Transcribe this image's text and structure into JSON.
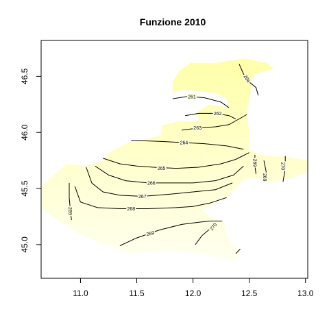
{
  "chart_data": {
    "type": "contour",
    "title": "Funzione 2010",
    "xlabel": "",
    "ylabel": "",
    "xlim": [
      10.65,
      13.02
    ],
    "ylim": [
      44.7,
      46.82
    ],
    "x_ticks": [
      "11.0",
      "11.5",
      "12.0",
      "12.5",
      "13.0"
    ],
    "y_ticks": [
      "45.0",
      "45.5",
      "46.0",
      "46.5"
    ],
    "fill_color": "#FFFFCC",
    "fill_color_dark": "#FFFFAA",
    "line_color": "#000000",
    "grid": false,
    "region_outline": [
      [
        10.65,
        45.52
      ],
      [
        10.88,
        45.72
      ],
      [
        11.05,
        45.7
      ],
      [
        11.2,
        45.75
      ],
      [
        11.25,
        45.82
      ],
      [
        11.4,
        45.9
      ],
      [
        11.55,
        45.93
      ],
      [
        11.72,
        45.98
      ],
      [
        11.72,
        46.06
      ],
      [
        11.88,
        46.1
      ],
      [
        12.05,
        46.1
      ],
      [
        12.03,
        46.18
      ],
      [
        12.15,
        46.25
      ],
      [
        12.32,
        46.22
      ],
      [
        12.3,
        46.3
      ],
      [
        12.2,
        46.35
      ],
      [
        11.9,
        46.38
      ],
      [
        11.82,
        46.35
      ],
      [
        11.82,
        46.45
      ],
      [
        11.88,
        46.55
      ],
      [
        11.98,
        46.62
      ],
      [
        12.2,
        46.62
      ],
      [
        12.45,
        46.66
      ],
      [
        12.65,
        46.62
      ],
      [
        12.72,
        46.57
      ],
      [
        12.55,
        46.52
      ],
      [
        12.52,
        46.46
      ],
      [
        12.52,
        46.4
      ],
      [
        12.5,
        46.3
      ],
      [
        12.48,
        46.16
      ],
      [
        12.5,
        46.0
      ],
      [
        12.5,
        45.85
      ],
      [
        12.6,
        45.8
      ],
      [
        12.85,
        45.78
      ],
      [
        13.02,
        45.75
      ],
      [
        13.02,
        45.65
      ],
      [
        12.9,
        45.6
      ],
      [
        12.72,
        45.56
      ],
      [
        12.55,
        45.6
      ],
      [
        12.45,
        45.58
      ],
      [
        12.38,
        45.5
      ],
      [
        12.3,
        45.42
      ],
      [
        12.2,
        45.38
      ],
      [
        12.08,
        45.3
      ],
      [
        12.15,
        45.25
      ],
      [
        12.28,
        45.2
      ],
      [
        12.3,
        45.08
      ],
      [
        12.35,
        45.0
      ],
      [
        12.42,
        44.95
      ],
      [
        12.42,
        44.9
      ],
      [
        12.35,
        44.85
      ],
      [
        12.2,
        44.9
      ],
      [
        11.8,
        44.95
      ],
      [
        11.45,
        44.92
      ],
      [
        11.2,
        45.0
      ],
      [
        10.95,
        45.12
      ],
      [
        10.75,
        45.25
      ],
      [
        10.65,
        45.32
      ]
    ],
    "contours": [
      {
        "label": "261",
        "points": [
          [
            11.82,
            46.3
          ],
          [
            11.95,
            46.32
          ],
          [
            12.1,
            46.31
          ],
          [
            12.25,
            46.27
          ],
          [
            12.32,
            46.22
          ]
        ],
        "label_at": [
          11.99,
          46.32
        ],
        "label_angle": 0
      },
      {
        "label": "262",
        "points": [
          [
            11.93,
            46.15
          ],
          [
            12.05,
            46.17
          ],
          [
            12.2,
            46.17
          ],
          [
            12.32,
            46.15
          ],
          [
            12.38,
            46.12
          ]
        ],
        "label_at": [
          12.22,
          46.17
        ],
        "label_angle": 0
      },
      {
        "label": "263",
        "points": [
          [
            11.9,
            46.02
          ],
          [
            12.05,
            46.04
          ],
          [
            12.2,
            46.05
          ],
          [
            12.32,
            46.07
          ],
          [
            12.48,
            46.16
          ]
        ],
        "label_at": [
          12.04,
          46.04
        ],
        "label_angle": 0
      },
      {
        "label": "264",
        "points": [
          [
            11.45,
            45.93
          ],
          [
            11.7,
            45.92
          ],
          [
            11.9,
            45.91
          ],
          [
            12.1,
            45.9
          ],
          [
            12.3,
            45.88
          ],
          [
            12.45,
            45.85
          ]
        ],
        "label_at": [
          11.92,
          45.91
        ],
        "label_angle": 0
      },
      {
        "label": "265",
        "points": [
          [
            11.2,
            45.77
          ],
          [
            11.35,
            45.72
          ],
          [
            11.5,
            45.7
          ],
          [
            11.65,
            45.69
          ],
          [
            11.85,
            45.68
          ],
          [
            12.05,
            45.69
          ],
          [
            12.25,
            45.72
          ],
          [
            12.38,
            45.76
          ],
          [
            12.5,
            45.82
          ]
        ],
        "label_at": [
          11.72,
          45.68
        ],
        "label_angle": 0
      },
      {
        "label": "266",
        "points": [
          [
            11.13,
            45.7
          ],
          [
            11.25,
            45.62
          ],
          [
            11.4,
            45.57
          ],
          [
            11.6,
            45.55
          ],
          [
            11.8,
            45.55
          ],
          [
            12.0,
            45.55
          ],
          [
            12.2,
            45.57
          ],
          [
            12.36,
            45.62
          ],
          [
            12.45,
            45.7
          ]
        ],
        "label_at": [
          11.63,
          45.55
        ],
        "label_angle": 0
      },
      {
        "label": "267",
        "points": [
          [
            11.05,
            45.69
          ],
          [
            11.1,
            45.55
          ],
          [
            11.2,
            45.47
          ],
          [
            11.35,
            45.44
          ],
          [
            11.55,
            45.43
          ],
          [
            11.8,
            45.45
          ],
          [
            12.0,
            45.47
          ],
          [
            12.2,
            45.49
          ],
          [
            12.35,
            45.55
          ]
        ],
        "label_at": [
          11.55,
          45.43
        ],
        "label_angle": 0
      },
      {
        "label": "268",
        "points": [
          [
            10.95,
            45.52
          ],
          [
            11.0,
            45.38
          ],
          [
            11.15,
            45.33
          ],
          [
            11.35,
            45.32
          ],
          [
            11.6,
            45.32
          ],
          [
            11.85,
            45.33
          ],
          [
            12.0,
            45.34
          ],
          [
            12.15,
            45.37
          ],
          [
            12.3,
            45.42
          ]
        ],
        "label_at": [
          11.45,
          45.32
        ],
        "label_angle": 0
      },
      {
        "label": "269",
        "points": [
          [
            11.35,
            44.99
          ],
          [
            11.5,
            45.06
          ],
          [
            11.7,
            45.13
          ],
          [
            11.9,
            45.18
          ],
          [
            12.05,
            45.2
          ],
          [
            12.15,
            45.21
          ],
          [
            12.26,
            45.21
          ]
        ],
        "label_at": [
          11.62,
          45.1
        ],
        "label_angle": -12
      },
      {
        "label": "269",
        "points": [
          [
            10.9,
            45.55
          ],
          [
            10.9,
            45.42
          ],
          [
            10.91,
            45.3
          ],
          [
            10.92,
            45.22
          ]
        ],
        "label_at": [
          10.91,
          45.3
        ],
        "label_angle": 90
      },
      {
        "label": "270",
        "points": [
          [
            12.02,
            45.0
          ],
          [
            12.08,
            45.08
          ],
          [
            12.15,
            45.14
          ],
          [
            12.22,
            45.18
          ]
        ],
        "label_at": [
          12.18,
          45.16
        ],
        "label_angle": -50
      },
      {
        "label": "270",
        "points": [
          [
            12.38,
            44.92
          ],
          [
            12.42,
            44.96
          ]
        ],
        "label_at": null,
        "label_angle": 0
      },
      {
        "label": "269",
        "points": [
          [
            12.55,
            45.8
          ],
          [
            12.55,
            45.7
          ],
          [
            12.56,
            45.63
          ]
        ],
        "label_at": [
          12.55,
          45.73
        ],
        "label_angle": 90
      },
      {
        "label": "269",
        "points": [
          [
            12.63,
            45.75
          ],
          [
            12.65,
            45.65
          ],
          [
            12.65,
            45.58
          ]
        ],
        "label_at": [
          12.64,
          45.6
        ],
        "label_angle": 90
      },
      {
        "label": "270",
        "points": [
          [
            12.82,
            45.79
          ],
          [
            12.82,
            45.68
          ],
          [
            12.8,
            45.56
          ]
        ],
        "label_at": [
          12.8,
          45.7
        ],
        "label_angle": 90
      },
      {
        "label": "266",
        "points": [
          [
            12.41,
            46.61
          ],
          [
            12.45,
            46.52
          ],
          [
            12.5,
            46.45
          ],
          [
            12.56,
            46.4
          ],
          [
            12.58,
            46.33
          ]
        ],
        "label_at": [
          12.48,
          46.48
        ],
        "label_angle": 60
      }
    ]
  }
}
